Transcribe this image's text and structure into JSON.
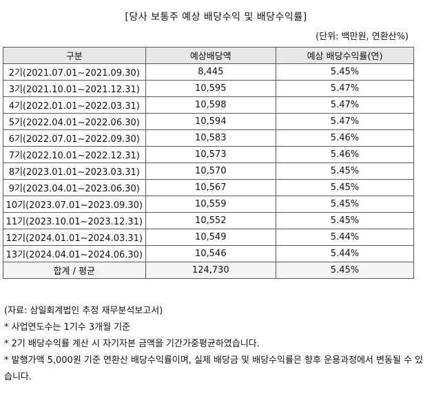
{
  "title": "[당사 보통주 예상 배당수익 및 배당수익률]",
  "unit": "(단위: 백만원, 연환산%)",
  "table": {
    "headers": [
      "구분",
      "예상배당액",
      "예상 배당수익률(연)"
    ],
    "rows": [
      {
        "period": "2기(2021.07.01~2021.09.30)",
        "dividend": "8,445",
        "yield": "5.45%"
      },
      {
        "period": "3기(2021.10.01~2021.12.31)",
        "dividend": "10,595",
        "yield": "5.47%"
      },
      {
        "period": "4기(2022.01.01~2022.03.31)",
        "dividend": "10,598",
        "yield": "5.47%"
      },
      {
        "period": "5기(2022.04.01~2022.06.30)",
        "dividend": "10,594",
        "yield": "5.47%"
      },
      {
        "period": "6기(2022.07.01~2022.09.30)",
        "dividend": "10,583",
        "yield": "5.46%"
      },
      {
        "period": "7기(2022.10.01~2022.12.31)",
        "dividend": "10,573",
        "yield": "5.46%"
      },
      {
        "period": "8기(2023.01.01~2023.03.31)",
        "dividend": "10,570",
        "yield": "5.45%"
      },
      {
        "period": "9기(2023.04.01~2023.06.30)",
        "dividend": "10,567",
        "yield": "5.45%"
      },
      {
        "period": "10기(2023.07.01~2023.09.30)",
        "dividend": "10,559",
        "yield": "5.45%"
      },
      {
        "period": "11기(2023.10.01~2023.12.31)",
        "dividend": "10,552",
        "yield": "5.45%"
      },
      {
        "period": "12기(2024.01.01~2024.03.31)",
        "dividend": "10,549",
        "yield": "5.44%"
      },
      {
        "period": "13기(2024.04.01~2024.06.30)",
        "dividend": "10,546",
        "yield": "5.44%"
      }
    ],
    "total": {
      "period": "합계 / 평균",
      "dividend": "124,730",
      "yield": "5.45%"
    }
  },
  "notes": {
    "source": "(자료: 삼일회계법인 추정 재무분석보고서)",
    "note1": "* 사업연도수는 1기수 3개월 기준",
    "note2": "* 2기 배당수익률 계산 시 자기자본 금액을 기간가중평균하였습니다.",
    "note3": "* 발행가액 5,000원 기준 연환산 배당수익률이며, 실제 배당금 및 배당수익률은 향후 운용과정에서 변동될 수 있습니다."
  }
}
